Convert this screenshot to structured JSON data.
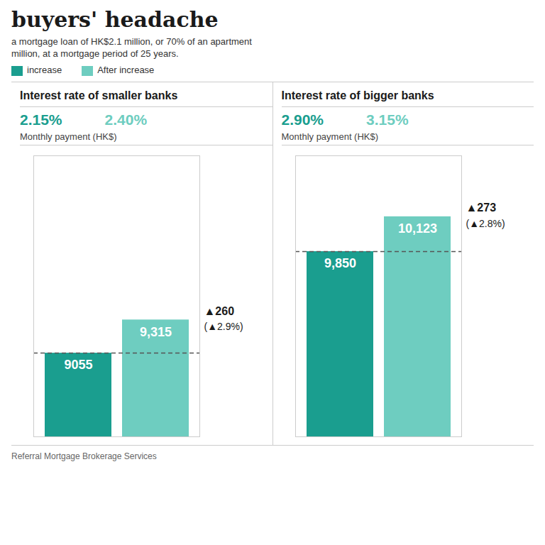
{
  "title": "buyers' headache",
  "subtitle": [
    "a mortgage loan of HK$2.1 million, or 70% of an apartment",
    "million, at a mortgage period of 25 years."
  ],
  "caption": "Referral Mortgage Brokerage Services",
  "legend": "top-left",
  "chart_data": [
    {
      "type": "bar",
      "title": "Interest rate of smaller banks",
      "rate_labels": [
        "2.15%",
        "2.40%"
      ],
      "ylabel": "Monthly payment (HK$)",
      "categories": [
        null
      ],
      "series": [
        {
          "name": "increase",
          "color": "#1a9e8f",
          "values": [
            9055
          ],
          "value_labels": [
            "9055"
          ]
        },
        {
          "name": "After increase",
          "color": "#6ecdc0",
          "values": [
            9315
          ],
          "value_labels": [
            "9,315"
          ]
        }
      ],
      "reference_line": 9055,
      "annotations": [
        "▲260",
        "(▲2.9%)"
      ],
      "ylim": [
        8400,
        10600
      ],
      "data_labels": true,
      "tick_labels": false
    },
    {
      "type": "bar",
      "title": "Interest rate of bigger banks",
      "rate_labels": [
        "2.90%",
        "3.15%"
      ],
      "ylabel": "Monthly payment (HK$)",
      "categories": [
        null
      ],
      "series": [
        {
          "name": "increase",
          "color": "#1a9e8f",
          "values": [
            9850
          ],
          "value_labels": [
            "9,850"
          ]
        },
        {
          "name": "After increase",
          "color": "#6ecdc0",
          "values": [
            10123
          ],
          "value_labels": [
            "10,123"
          ]
        }
      ],
      "reference_line": 9850,
      "annotations": [
        "▲273",
        "(▲2.8%)"
      ],
      "ylim": [
        8400,
        10600
      ],
      "data_labels": true,
      "tick_labels": false
    }
  ]
}
